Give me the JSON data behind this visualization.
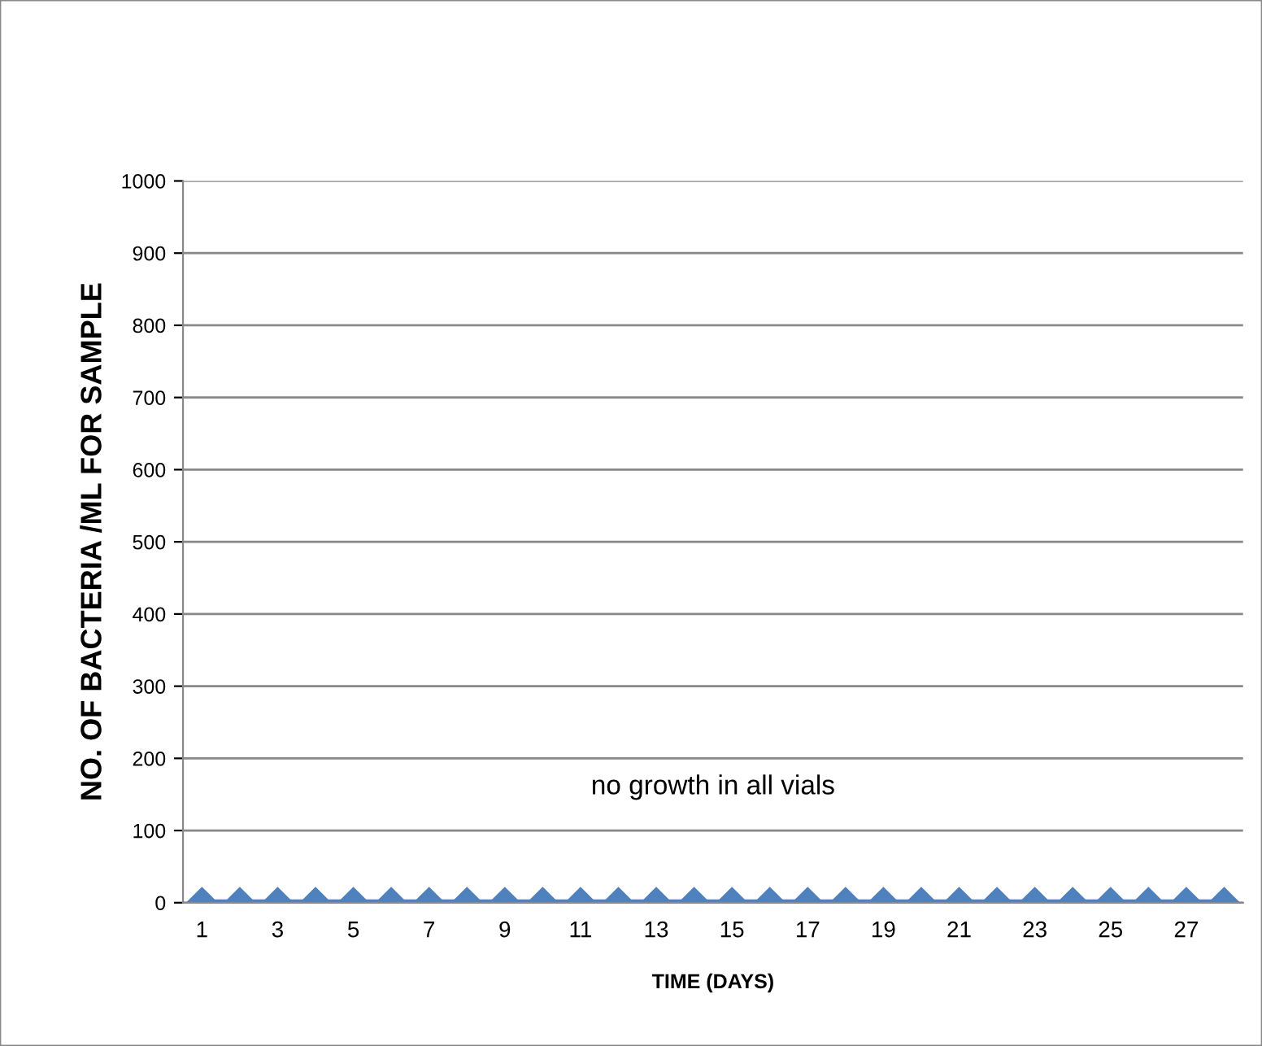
{
  "chart_data": {
    "type": "line",
    "xlabel": "TIME (DAYS)",
    "ylabel": "NO. OF BACTERIA /ML FOR SAMPLE",
    "categories": [
      "1",
      null,
      "3",
      null,
      "5",
      null,
      "7",
      null,
      "9",
      null,
      "11",
      null,
      "13",
      null,
      "15",
      null,
      "17",
      null,
      "19",
      null,
      "21",
      null,
      "23",
      null,
      "25",
      null,
      "27",
      null
    ],
    "series": [
      {
        "color": "#4f81bd",
        "values": [
          0,
          0,
          0,
          0,
          0,
          0,
          0,
          0,
          0,
          0,
          0,
          0,
          0,
          0,
          0,
          0,
          0,
          0,
          0,
          0,
          0,
          0,
          0,
          0,
          0,
          0,
          0,
          0
        ]
      }
    ],
    "ylim": [
      0,
      1000
    ],
    "yticks": [
      0,
      100,
      200,
      300,
      400,
      500,
      600,
      700,
      800,
      900,
      1000
    ],
    "grid": "y",
    "marker": "diamond",
    "line_style": "solid",
    "annotations": [
      "no growth in all vials"
    ]
  }
}
